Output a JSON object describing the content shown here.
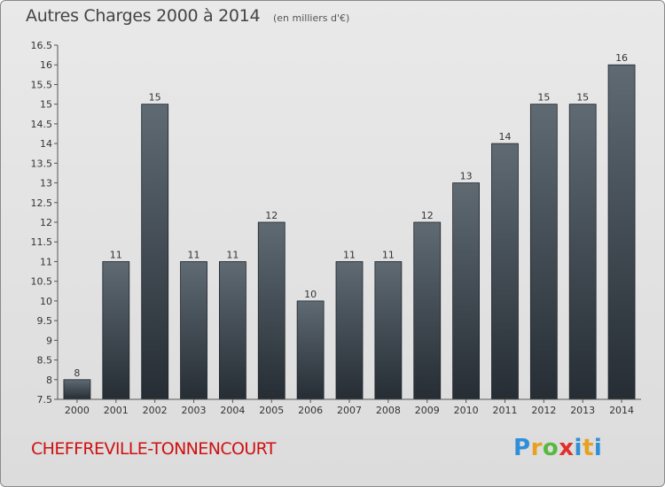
{
  "title": "Autres Charges 2000 à 2014",
  "subtitle": "(en milliers d'€)",
  "commune": "CHEFFREVILLE-TONNENCOURT",
  "logo": {
    "letters": [
      "P",
      "r",
      "o",
      "x",
      "i",
      "t",
      "i"
    ],
    "colors": [
      "#2f8fd8",
      "#e8a020",
      "#58b840",
      "#e03028",
      "#2f8fd8",
      "#e8a020",
      "#2f8fd8"
    ]
  },
  "chart_data": {
    "type": "bar",
    "categories": [
      "2000",
      "2001",
      "2002",
      "2003",
      "2004",
      "2005",
      "2006",
      "2007",
      "2008",
      "2009",
      "2010",
      "2011",
      "2012",
      "2013",
      "2014"
    ],
    "values": [
      8,
      11,
      15,
      11,
      11,
      12,
      10,
      11,
      11,
      12,
      13,
      14,
      15,
      15,
      16
    ],
    "value_labels": [
      "8",
      "11",
      "15",
      "11",
      "11",
      "12",
      "10",
      "11",
      "11",
      "12",
      "13",
      "14",
      "15",
      "15",
      "16"
    ],
    "ylim": [
      7.5,
      16.5
    ],
    "yticks": [
      "7.5",
      "8",
      "8.5",
      "9",
      "9.5",
      "10",
      "10.5",
      "11",
      "11.5",
      "12",
      "12.5",
      "13",
      "13.5",
      "14",
      "14.5",
      "15",
      "15.5",
      "16",
      "16.5"
    ],
    "bar_color": "#3d4650",
    "grid": false
  }
}
